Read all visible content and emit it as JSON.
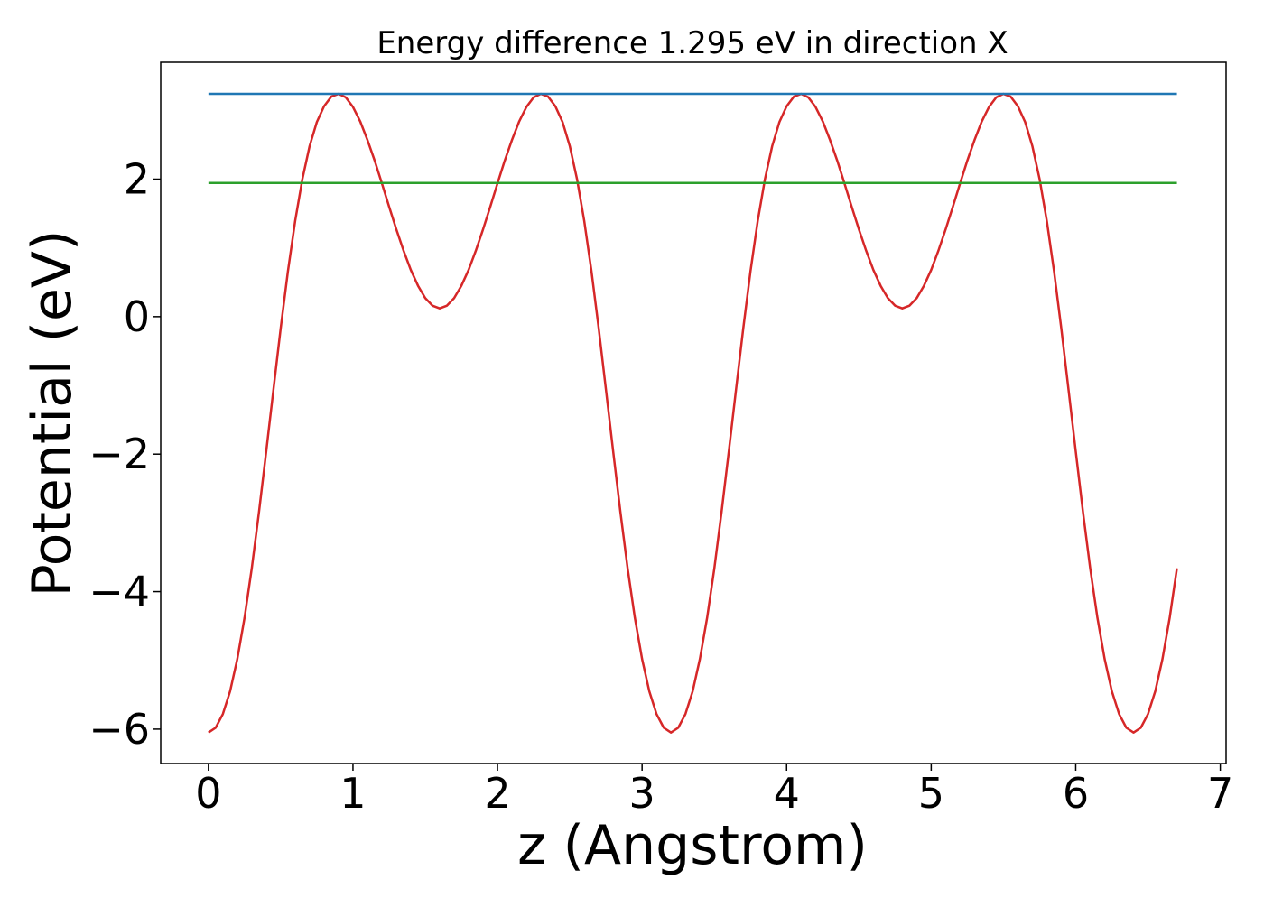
{
  "chart_data": {
    "type": "line",
    "title": "Energy difference 1.295 eV in direction X",
    "xlabel": "z (Angstrom)",
    "ylabel": "Potential (eV)",
    "xlim": [
      -0.33,
      7.04
    ],
    "ylim": [
      -6.5,
      3.7
    ],
    "grid": false,
    "xticks": [
      0,
      1,
      2,
      3,
      4,
      5,
      6,
      7
    ],
    "yticks": [
      -6,
      -4,
      -2,
      0,
      2
    ],
    "xtick_labels": [
      "0",
      "1",
      "2",
      "3",
      "4",
      "5",
      "6",
      "7"
    ],
    "ytick_labels": [
      "−6",
      "−4",
      "−2",
      "0",
      "2"
    ],
    "series": [
      {
        "color": "#d62728",
        "x": [
          0.0,
          0.05,
          0.1,
          0.15,
          0.2,
          0.25,
          0.3,
          0.35,
          0.4,
          0.45,
          0.5,
          0.55,
          0.6,
          0.65,
          0.7,
          0.75,
          0.8,
          0.85,
          0.9,
          0.95,
          1.0,
          1.05,
          1.1,
          1.15,
          1.2,
          1.25,
          1.3,
          1.35,
          1.4,
          1.45,
          1.5,
          1.55,
          1.6,
          1.65,
          1.7,
          1.75,
          1.8,
          1.85,
          1.9,
          1.95,
          2.0,
          2.05,
          2.1,
          2.15,
          2.2,
          2.25,
          2.3,
          2.35,
          2.4,
          2.45,
          2.5,
          2.55,
          2.6,
          2.65,
          2.7,
          2.75,
          2.8,
          2.85,
          2.9,
          2.95,
          3.0,
          3.05,
          3.1,
          3.15,
          3.2,
          3.25,
          3.3,
          3.35,
          3.4,
          3.45,
          3.5,
          3.55,
          3.6,
          3.65,
          3.7,
          3.75,
          3.8,
          3.85,
          3.9,
          3.95,
          4.0,
          4.05,
          4.1,
          4.15,
          4.2,
          4.25,
          4.3,
          4.35,
          4.4,
          4.45,
          4.5,
          4.55,
          4.6,
          4.65,
          4.7,
          4.75,
          4.8,
          4.85,
          4.9,
          4.95,
          5.0,
          5.05,
          5.1,
          5.15,
          5.2,
          5.25,
          5.3,
          5.35,
          5.4,
          5.45,
          5.5,
          5.55,
          5.6,
          5.65,
          5.7,
          5.75,
          5.8,
          5.85,
          5.9,
          5.95,
          6.0,
          6.05,
          6.1,
          6.15,
          6.2,
          6.25,
          6.3,
          6.35,
          6.4,
          6.45,
          6.5,
          6.55,
          6.6,
          6.65,
          6.7
        ],
        "y": [
          -6.05,
          -5.98,
          -5.78,
          -5.45,
          -4.98,
          -4.38,
          -3.66,
          -2.84,
          -1.96,
          -1.06,
          -0.17,
          0.66,
          1.39,
          2.0,
          2.48,
          2.83,
          3.06,
          3.2,
          3.24,
          3.19,
          3.05,
          2.84,
          2.57,
          2.27,
          1.94,
          1.6,
          1.27,
          0.96,
          0.68,
          0.45,
          0.27,
          0.16,
          0.12,
          0.16,
          0.27,
          0.45,
          0.68,
          0.96,
          1.27,
          1.6,
          1.94,
          2.27,
          2.57,
          2.84,
          3.05,
          3.19,
          3.24,
          3.2,
          3.06,
          2.83,
          2.48,
          2.0,
          1.39,
          0.66,
          -0.17,
          -1.06,
          -1.96,
          -2.84,
          -3.66,
          -4.38,
          -4.98,
          -5.45,
          -5.78,
          -5.98,
          -6.05,
          -5.98,
          -5.78,
          -5.45,
          -4.98,
          -4.38,
          -3.66,
          -2.84,
          -1.96,
          -1.06,
          -0.17,
          0.66,
          1.39,
          2.0,
          2.48,
          2.83,
          3.06,
          3.2,
          3.24,
          3.19,
          3.05,
          2.84,
          2.57,
          2.27,
          1.94,
          1.6,
          1.27,
          0.96,
          0.68,
          0.45,
          0.27,
          0.16,
          0.12,
          0.16,
          0.27,
          0.45,
          0.68,
          0.96,
          1.27,
          1.6,
          1.94,
          2.27,
          2.57,
          2.84,
          3.05,
          3.19,
          3.24,
          3.2,
          3.06,
          2.83,
          2.48,
          2.0,
          1.39,
          0.66,
          -0.17,
          -1.06,
          -1.96,
          -2.84,
          -3.66,
          -4.38,
          -4.98,
          -5.45,
          -5.78,
          -5.98,
          -6.05,
          -5.98,
          -5.78,
          -5.45,
          -4.98,
          -4.38,
          -3.66
        ]
      },
      {
        "color": "#1f77b4",
        "x": [
          0.0,
          6.7
        ],
        "y": [
          3.24,
          3.24
        ]
      },
      {
        "color": "#2ca02c",
        "x": [
          0.0,
          6.7
        ],
        "y": [
          1.945,
          1.945
        ]
      }
    ]
  }
}
